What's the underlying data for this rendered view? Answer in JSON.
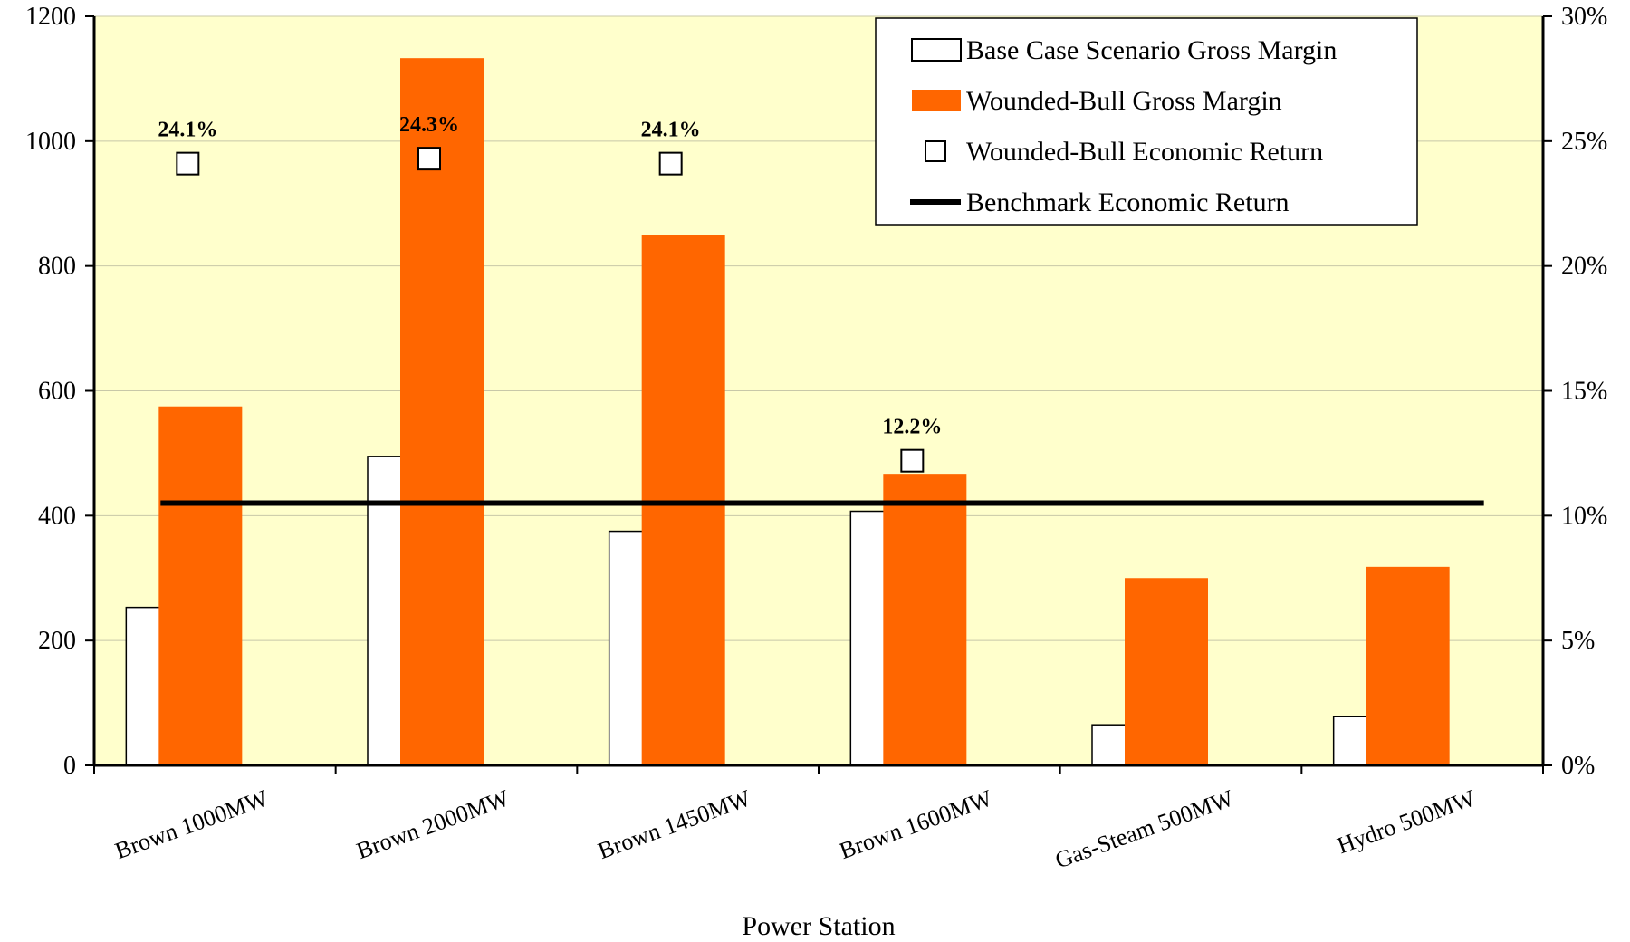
{
  "chart_data": {
    "type": "bar",
    "xlabel": "Power Station",
    "ylabel": "",
    "y2label": "",
    "ylim": [
      0,
      1200
    ],
    "y_ticks": [
      0,
      200,
      400,
      600,
      800,
      1000,
      1200
    ],
    "y2lim": [
      0,
      30
    ],
    "y2_ticks": [
      "0%",
      "5%",
      "10%",
      "15%",
      "20%",
      "25%",
      "30%"
    ],
    "categories": [
      "Brown 1000MW",
      "Brown 2000MW",
      "Brown 1450MW",
      "Brown 1600MW",
      "Gas-Steam 500MW",
      "Hydro 500MW"
    ],
    "series": [
      {
        "name": "Base Case Scenario Gross Margin",
        "kind": "bar",
        "axis": "left",
        "color": "#ffffff",
        "values": [
          253,
          495,
          375,
          407,
          65,
          78
        ]
      },
      {
        "name": "Wounded-Bull Gross Margin",
        "kind": "bar",
        "axis": "left",
        "color": "#ff6600",
        "values": [
          575,
          1133,
          850,
          467,
          300,
          318
        ]
      },
      {
        "name": "Wounded-Bull Economic Return",
        "kind": "marker",
        "axis": "right",
        "values": [
          24.1,
          24.3,
          24.1,
          12.2,
          null,
          null
        ],
        "labels": [
          "24.1%",
          "24.3%",
          "24.1%",
          "12.2%",
          "",
          ""
        ]
      },
      {
        "name": "Benchmark Economic Return",
        "kind": "line",
        "axis": "right",
        "color": "#000000",
        "value": 10.5
      }
    ],
    "grid": true,
    "legend": "top-right",
    "plot_background": "#ffffcc"
  }
}
